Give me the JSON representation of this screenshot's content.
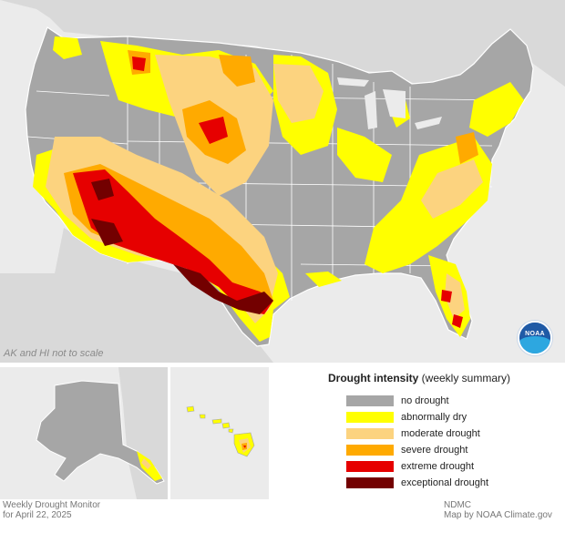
{
  "map": {
    "inset_note": "AK and HI not to scale"
  },
  "legend": {
    "title": "Drought intensity",
    "subtitle": "(weekly summary)",
    "items": [
      {
        "label": "no drought",
        "color": "#a6a6a6"
      },
      {
        "label": "abnormally dry",
        "color": "#ffff00"
      },
      {
        "label": "moderate drought",
        "color": "#fcd37f"
      },
      {
        "label": "severe drought",
        "color": "#ffaa00"
      },
      {
        "label": "extreme drought",
        "color": "#e60000"
      },
      {
        "label": "exceptional drought",
        "color": "#730000"
      }
    ]
  },
  "credits": {
    "left_line1": "Weekly Drought Monitor",
    "left_line2": "for April 22, 2025",
    "right_line1": "NDMC",
    "right_line2": "Map by NOAA Climate.gov"
  },
  "logo": {
    "text": "NOAA",
    "icon": "noaa-logo"
  },
  "colors": {
    "background": "#ebebeb",
    "neighbor_land": "#d9d9d9",
    "no_drought": "#a6a6a6",
    "d0": "#ffff00",
    "d1": "#fcd37f",
    "d2": "#ffaa00",
    "d3": "#e60000",
    "d4": "#730000"
  }
}
